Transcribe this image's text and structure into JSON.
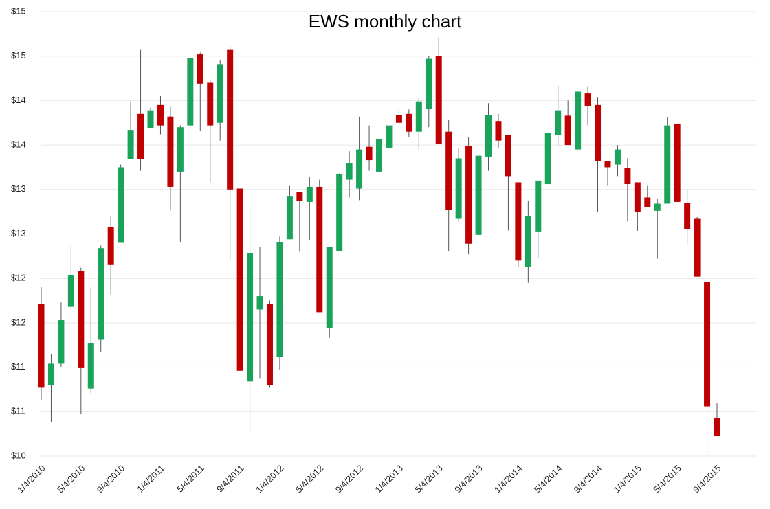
{
  "chart_data": {
    "type": "candlestick",
    "title": "EWS monthly chart",
    "categories": [
      "1/4/2010",
      null,
      null,
      null,
      "5/4/2010",
      null,
      null,
      null,
      "9/4/2010",
      null,
      null,
      null,
      "1/4/2011",
      null,
      null,
      null,
      "5/4/2011",
      null,
      null,
      null,
      "9/4/2011",
      null,
      null,
      null,
      "1/4/2012",
      null,
      null,
      null,
      "5/4/2012",
      null,
      null,
      null,
      "9/4/2012",
      null,
      null,
      null,
      "1/4/2013",
      null,
      null,
      null,
      "5/4/2013",
      null,
      null,
      null,
      "9/4/2013",
      null,
      null,
      null,
      "1/4/2014",
      null,
      null,
      null,
      "5/4/2014",
      null,
      null,
      null,
      "9/4/2014",
      null,
      null,
      null,
      "1/4/2015",
      null,
      null,
      null,
      "5/4/2015",
      null,
      null,
      null,
      "9/4/2015"
    ],
    "open": [
      11.71,
      10.8,
      11.04,
      11.68,
      12.08,
      10.76,
      11.31,
      12.58,
      12.4,
      13.34,
      13.85,
      13.69,
      13.95,
      13.82,
      13.2,
      13.72,
      14.52,
      14.2,
      13.75,
      14.57,
      13.01,
      10.84,
      11.65,
      11.71,
      11.12,
      12.44,
      12.97,
      12.86,
      13.03,
      11.44,
      12.31,
      13.11,
      13.01,
      13.48,
      13.2,
      13.47,
      13.84,
      13.85,
      13.65,
      13.91,
      14.5,
      13.65,
      12.67,
      13.49,
      12.49,
      13.37,
      13.77,
      13.61,
      13.08,
      12.13,
      12.52,
      13.06,
      13.61,
      13.83,
      13.45,
      14.08,
      13.95,
      13.32,
      13.28,
      13.24,
      13.08,
      12.91,
      12.76,
      12.84,
      13.74,
      12.85,
      12.67,
      11.96,
      10.43
    ],
    "high": [
      11.9,
      11.15,
      11.73,
      12.36,
      12.12,
      11.9,
      12.37,
      12.7,
      13.28,
      13.99,
      14.57,
      13.92,
      14.05,
      13.93,
      13.72,
      14.48,
      14.54,
      14.24,
      14.45,
      14.61,
      13.01,
      12.81,
      12.35,
      11.75,
      12.47,
      13.04,
      12.97,
      13.14,
      13.11,
      12.35,
      13.18,
      13.43,
      13.82,
      13.72,
      13.59,
      13.72,
      13.91,
      13.9,
      14.03,
      14.5,
      14.71,
      13.78,
      13.47,
      13.59,
      13.38,
      13.97,
      13.85,
      13.61,
      13.08,
      12.87,
      13.1,
      13.64,
      14.17,
      14.0,
      14.1,
      14.16,
      14.04,
      13.32,
      13.5,
      13.35,
      13.08,
      13.04,
      12.89,
      13.81,
      13.74,
      13.0,
      12.69,
      11.96,
      10.6
    ],
    "low": [
      10.63,
      10.38,
      11.0,
      11.65,
      10.47,
      10.71,
      11.17,
      11.82,
      12.4,
      13.34,
      13.21,
      13.69,
      13.62,
      12.77,
      12.41,
      13.72,
      13.66,
      13.08,
      13.55,
      12.21,
      10.96,
      10.29,
      10.87,
      10.77,
      10.97,
      12.44,
      12.3,
      12.43,
      11.62,
      11.33,
      12.31,
      12.91,
      12.88,
      13.21,
      12.63,
      13.47,
      13.75,
      13.59,
      13.45,
      13.7,
      13.51,
      12.31,
      12.64,
      12.27,
      12.49,
      13.21,
      13.46,
      12.54,
      12.13,
      11.95,
      12.23,
      13.06,
      13.49,
      13.5,
      13.45,
      13.72,
      12.75,
      13.04,
      13.15,
      12.64,
      12.53,
      12.8,
      12.22,
      12.84,
      12.86,
      12.38,
      12.02,
      10.0,
      10.23
    ],
    "close": [
      10.77,
      11.04,
      11.53,
      12.04,
      10.99,
      11.27,
      12.34,
      12.15,
      13.25,
      13.67,
      13.34,
      13.89,
      13.72,
      13.03,
      13.7,
      14.48,
      14.19,
      13.72,
      14.41,
      13.0,
      10.96,
      12.28,
      11.8,
      10.8,
      12.41,
      12.92,
      12.87,
      13.03,
      11.62,
      12.35,
      13.17,
      13.3,
      13.45,
      13.33,
      13.57,
      13.72,
      13.75,
      13.65,
      13.99,
      14.47,
      13.51,
      12.77,
      13.35,
      12.39,
      13.38,
      13.84,
      13.55,
      13.15,
      12.2,
      12.7,
      13.1,
      13.64,
      13.89,
      13.5,
      14.1,
      13.94,
      13.32,
      13.25,
      13.45,
      13.06,
      12.75,
      12.8,
      12.84,
      13.72,
      12.86,
      12.55,
      12.02,
      10.56,
      10.23
    ],
    "up_color": "#1aa35a",
    "down_color": "#c00000",
    "ylim": [
      10,
      15
    ],
    "yticks": [
      {
        "value": 10,
        "label": "$10"
      },
      {
        "value": 10.5,
        "label": "$11"
      },
      {
        "value": 11,
        "label": "$11"
      },
      {
        "value": 11.5,
        "label": "$12"
      },
      {
        "value": 12,
        "label": "$12"
      },
      {
        "value": 12.5,
        "label": "$13"
      },
      {
        "value": 13,
        "label": "$13"
      },
      {
        "value": 13.5,
        "label": "$14"
      },
      {
        "value": 14,
        "label": "$14"
      },
      {
        "value": 14.5,
        "label": "$15"
      },
      {
        "value": 15,
        "label": "$15"
      }
    ],
    "grid": true
  }
}
